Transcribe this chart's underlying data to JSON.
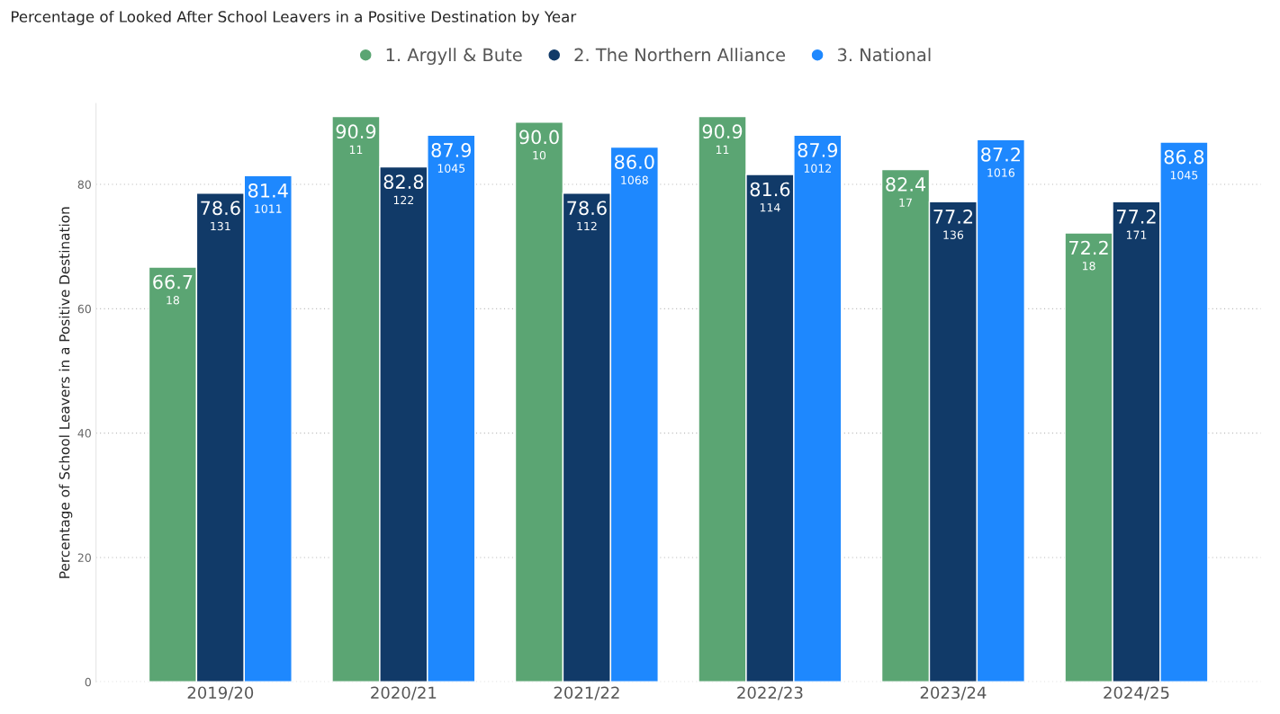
{
  "chart_data": {
    "type": "bar",
    "title": "Percentage of Looked After School Leavers in a Positive Destination by Year",
    "ylabel": "Percentage of School Leavers in a Positive Destination",
    "categories": [
      "2019/20",
      "2020/21",
      "2021/22",
      "2022/23",
      "2023/24",
      "2024/25"
    ],
    "series": [
      {
        "name": "1. Argyll & Bute",
        "color": "#5ba573",
        "values": [
          66.7,
          90.9,
          90.0,
          90.9,
          82.4,
          72.2
        ],
        "value_labels": [
          "66.7",
          "90.9",
          "90.0",
          "90.9",
          "82.4",
          "72.2"
        ]
      },
      {
        "name": "2. The Northern Alliance",
        "color": "#113a68",
        "values": [
          78.6,
          82.8,
          78.6,
          81.6,
          77.2,
          77.2
        ],
        "value_labels": [
          "78.6",
          "82.8",
          "78.6",
          "81.6",
          "77.2",
          "77.2"
        ]
      },
      {
        "name": "3. National",
        "color": "#1e88fe",
        "values": [
          81.4,
          87.9,
          86.0,
          87.9,
          87.2,
          86.8
        ],
        "value_labels": [
          "81.4",
          "87.9",
          "86.0",
          "87.9",
          "87.2",
          "86.8"
        ]
      }
    ],
    "annotations": [
      "18",
      "11",
      "10",
      "11",
      "17",
      "18",
      "131",
      "122",
      "112",
      "114",
      "136",
      "171",
      "1011",
      "1045",
      "1068",
      "1012",
      "1016",
      "1045"
    ],
    "ylim": [
      0,
      93
    ],
    "yticks": [
      0,
      20,
      40,
      60,
      80
    ],
    "grid": "y",
    "legend": "top"
  }
}
